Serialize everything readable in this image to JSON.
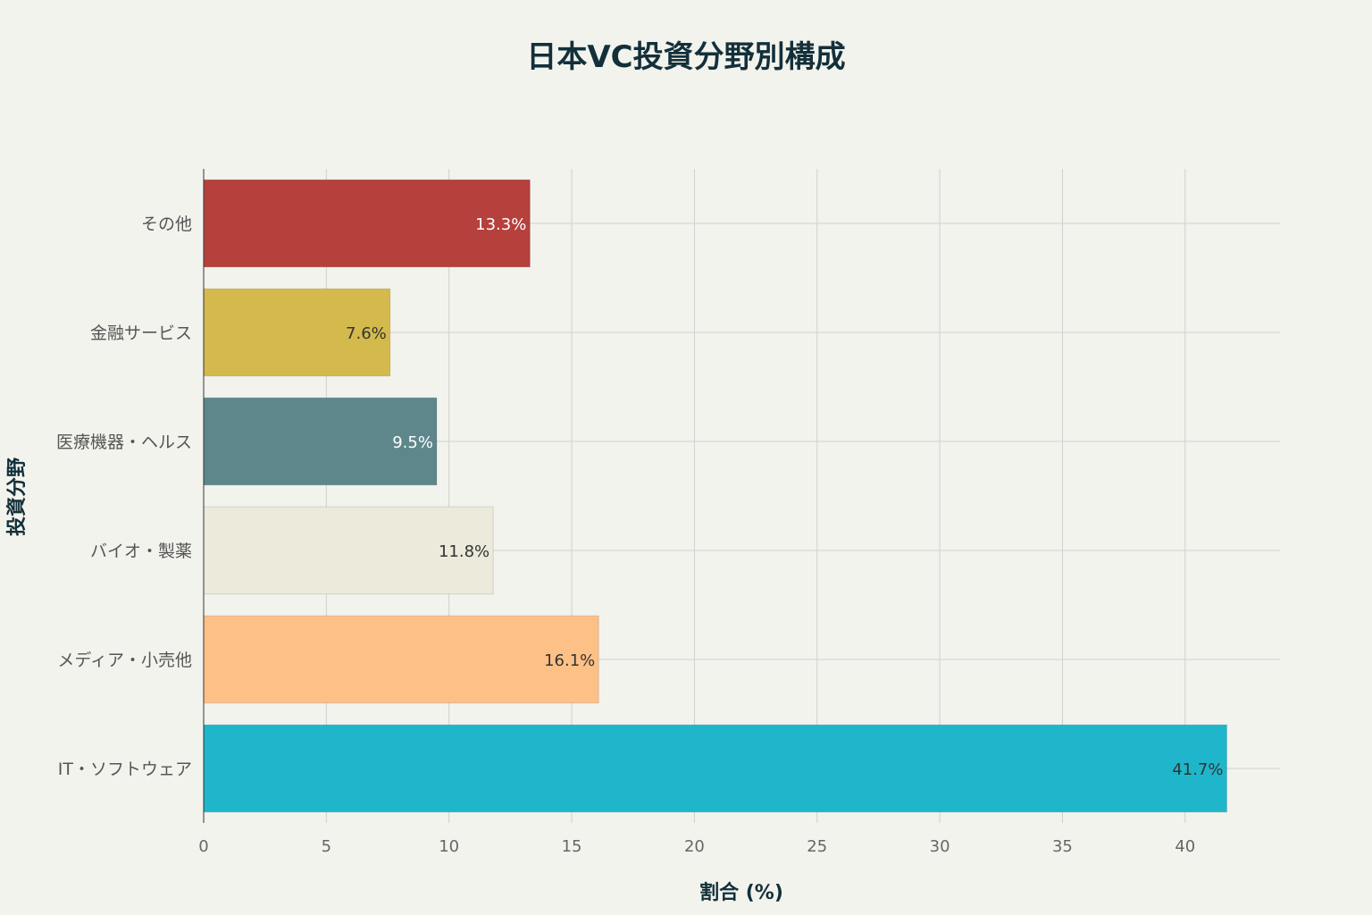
{
  "chart_data": {
    "type": "bar",
    "orientation": "horizontal",
    "title": "日本VC投資分野別構成",
    "xlabel": "割合 (%)",
    "ylabel": "投資分野",
    "xlim": [
      0,
      44
    ],
    "xticks": [
      0,
      5,
      10,
      15,
      20,
      25,
      30,
      35,
      40
    ],
    "grid": true,
    "categories": [
      "その他",
      "金融サービス",
      "医療機器・ヘルス",
      "バイオ・製薬",
      "メディア・小売他",
      "IT・ソフトウェア"
    ],
    "values": [
      13.3,
      7.6,
      9.5,
      11.8,
      16.1,
      41.7
    ],
    "data_labels": [
      "13.3%",
      "7.6%",
      "9.5%",
      "11.8%",
      "16.1%",
      "41.7%"
    ],
    "colors": [
      "#b5403c",
      "#d4ba4c",
      "#5e878c",
      "#eceadb",
      "#fdc086",
      "#1fb6cb"
    ],
    "label_colors": [
      "#ffffff",
      "#333333",
      "#ffffff",
      "#333333",
      "#333333",
      "#333333"
    ]
  }
}
